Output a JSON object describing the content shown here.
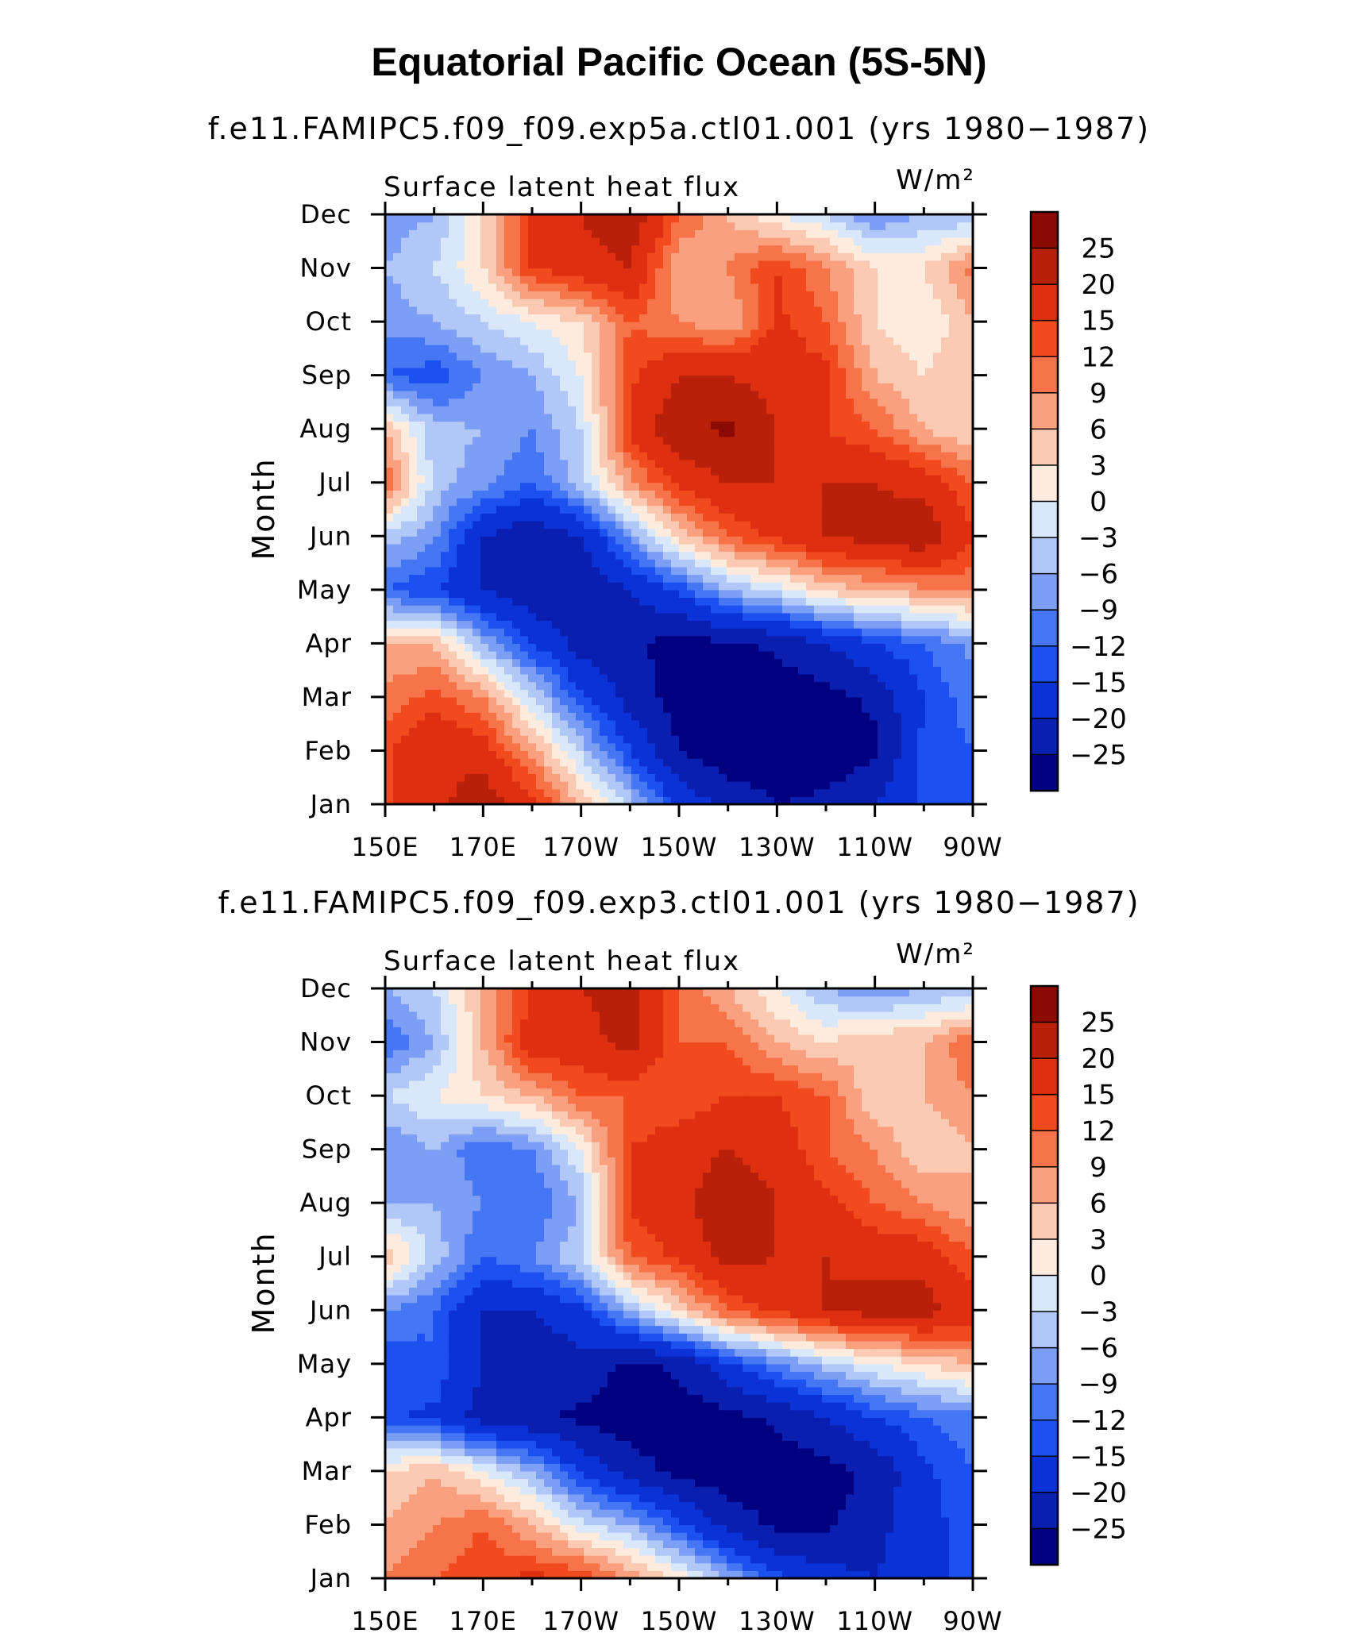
{
  "figure_title": "Equatorial Pacific Ocean (5S-5N)",
  "levels": [
    -25,
    -20,
    -15,
    -12,
    -9,
    -6,
    -3,
    0,
    3,
    6,
    9,
    12,
    15,
    20,
    25
  ],
  "colors": [
    "#000080",
    "#0a1fb0",
    "#0a32d6",
    "#1c50f0",
    "#4576f3",
    "#7c9ef4",
    "#b0c7f7",
    "#d9e7fb",
    "#fdebdd",
    "#fcc9b2",
    "#fba07f",
    "#f7744a",
    "#f04a1e",
    "#de3010",
    "#b8200a",
    "#8c0a04"
  ],
  "chart_data": [
    {
      "type": "heatmap",
      "title": "f.e11.FAMIPC5.f09_f09.exp5a.ctl01.001 (yrs 1980−1987)",
      "left_label": "Surface latent heat flux",
      "right_label": "W/m²",
      "ylabel": "Month",
      "xlabel": "",
      "x_tick_labels": [
        "150E",
        "170E",
        "170W",
        "150W",
        "130W",
        "110W",
        "90W"
      ],
      "y_tick_labels": [
        "Jan",
        "Feb",
        "Mar",
        "Apr",
        "May",
        "Jun",
        "Jul",
        "Aug",
        "Sep",
        "Oct",
        "Nov",
        "Dec"
      ],
      "xlim": [
        150,
        270
      ],
      "ylim": [
        1,
        12
      ],
      "colorbar_labels": [
        "25",
        "20",
        "15",
        "12",
        "9",
        "6",
        "3",
        "0",
        "−3",
        "−6",
        "−9",
        "−12",
        "−15",
        "−20",
        "−25"
      ],
      "lon": [
        150,
        160,
        170,
        180,
        190,
        200,
        210,
        220,
        230,
        240,
        250,
        260,
        270
      ],
      "months": [
        "Jan",
        "Feb",
        "Mar",
        "Apr",
        "May",
        "Jun",
        "Jul",
        "Aug",
        "Sep",
        "Oct",
        "Nov",
        "Dec"
      ],
      "values": [
        [
          14,
          18,
          24,
          16,
          6,
          -4,
          -16,
          -22,
          -25,
          -24,
          -20,
          -14,
          -12
        ],
        [
          14,
          20,
          17,
          8,
          -4,
          -15,
          -25,
          -28,
          -28,
          -28,
          -26,
          -14,
          -12
        ],
        [
          10,
          13,
          9,
          -3,
          -14,
          -22,
          -27,
          -29,
          -28,
          -27,
          -24,
          -15,
          -10
        ],
        [
          6,
          6,
          -6,
          -15,
          -22,
          -24,
          -27,
          -26,
          -24,
          -20,
          -15,
          -12,
          -8
        ],
        [
          -12,
          -15,
          -20,
          -24,
          -25,
          -20,
          -14,
          -6,
          -2,
          4,
          6,
          8,
          10
        ],
        [
          -4,
          -8,
          -20,
          -24,
          -20,
          -8,
          4,
          12,
          16,
          20,
          22,
          24,
          15
        ],
        [
          12,
          -4,
          -8,
          -12,
          -4,
          8,
          16,
          20,
          20,
          20,
          20,
          18,
          12
        ],
        [
          6,
          -5,
          -6,
          -9,
          -3,
          16,
          24,
          26,
          20,
          15,
          12,
          6,
          3
        ],
        [
          -12,
          -14,
          -9,
          -6,
          0,
          14,
          20,
          20,
          18,
          16,
          6,
          3,
          6
        ],
        [
          -8,
          -6,
          -3,
          0,
          3,
          12,
          9,
          6,
          16,
          12,
          3,
          0,
          6
        ],
        [
          -6,
          -3,
          3,
          15,
          18,
          20,
          6,
          9,
          15,
          9,
          3,
          3,
          10
        ],
        [
          -8,
          -6,
          3,
          15,
          20,
          24,
          12,
          6,
          0,
          -3,
          -9,
          -6,
          -6
        ]
      ]
    },
    {
      "type": "heatmap",
      "title": "f.e11.FAMIPC5.f09_f09.exp3.ctl01.001 (yrs 1980−1987)",
      "left_label": "Surface latent heat flux",
      "right_label": "W/m²",
      "ylabel": "Month",
      "xlabel": "",
      "x_tick_labels": [
        "150E",
        "170E",
        "170W",
        "150W",
        "130W",
        "110W",
        "90W"
      ],
      "y_tick_labels": [
        "Jan",
        "Feb",
        "Mar",
        "Apr",
        "May",
        "Jun",
        "Jul",
        "Aug",
        "Sep",
        "Oct",
        "Nov",
        "Dec"
      ],
      "xlim": [
        150,
        270
      ],
      "ylim": [
        1,
        12
      ],
      "colorbar_labels": [
        "25",
        "20",
        "15",
        "12",
        "9",
        "6",
        "3",
        "0",
        "−3",
        "−6",
        "−9",
        "−12",
        "−15",
        "−20",
        "−25"
      ],
      "lon": [
        150,
        160,
        170,
        180,
        190,
        200,
        210,
        220,
        230,
        240,
        250,
        260,
        270
      ],
      "months": [
        "Jan",
        "Feb",
        "Mar",
        "Apr",
        "May",
        "Jun",
        "Jul",
        "Aug",
        "Sep",
        "Oct",
        "Nov",
        "Dec"
      ],
      "values": [
        [
          9,
          12,
          14,
          16,
          15,
          8,
          2,
          -6,
          -14,
          -18,
          -20,
          -16,
          -14
        ],
        [
          6,
          9,
          12,
          6,
          -2,
          -6,
          -14,
          -22,
          -26,
          -26,
          -22,
          -16,
          -14
        ],
        [
          3,
          6,
          0,
          -6,
          -16,
          -22,
          -27,
          -28,
          -28,
          -27,
          -24,
          -16,
          -12
        ],
        [
          -14,
          -16,
          -22,
          -24,
          -26,
          -28,
          -28,
          -27,
          -24,
          -20,
          -15,
          -12,
          -10
        ],
        [
          -15,
          -12,
          -20,
          -24,
          -22,
          -26,
          -24,
          -16,
          -10,
          -4,
          0,
          3,
          6
        ],
        [
          -9,
          -12,
          -20,
          -20,
          -16,
          -6,
          3,
          12,
          16,
          20,
          22,
          22,
          18
        ],
        [
          6,
          -4,
          -12,
          -9,
          -3,
          12,
          16,
          22,
          20,
          20,
          18,
          18,
          12
        ],
        [
          -6,
          -6,
          -9,
          -12,
          -6,
          16,
          18,
          24,
          20,
          16,
          12,
          9,
          6
        ],
        [
          -9,
          -6,
          -12,
          -9,
          0,
          15,
          18,
          20,
          18,
          12,
          9,
          3,
          6
        ],
        [
          -3,
          0,
          3,
          6,
          12,
          12,
          12,
          15,
          15,
          12,
          3,
          6,
          9
        ],
        [
          -12,
          -6,
          6,
          18,
          18,
          22,
          12,
          12,
          6,
          3,
          6,
          6,
          12
        ],
        [
          -6,
          -3,
          6,
          15,
          20,
          22,
          12,
          6,
          0,
          -6,
          -9,
          -6,
          -6
        ]
      ]
    }
  ]
}
